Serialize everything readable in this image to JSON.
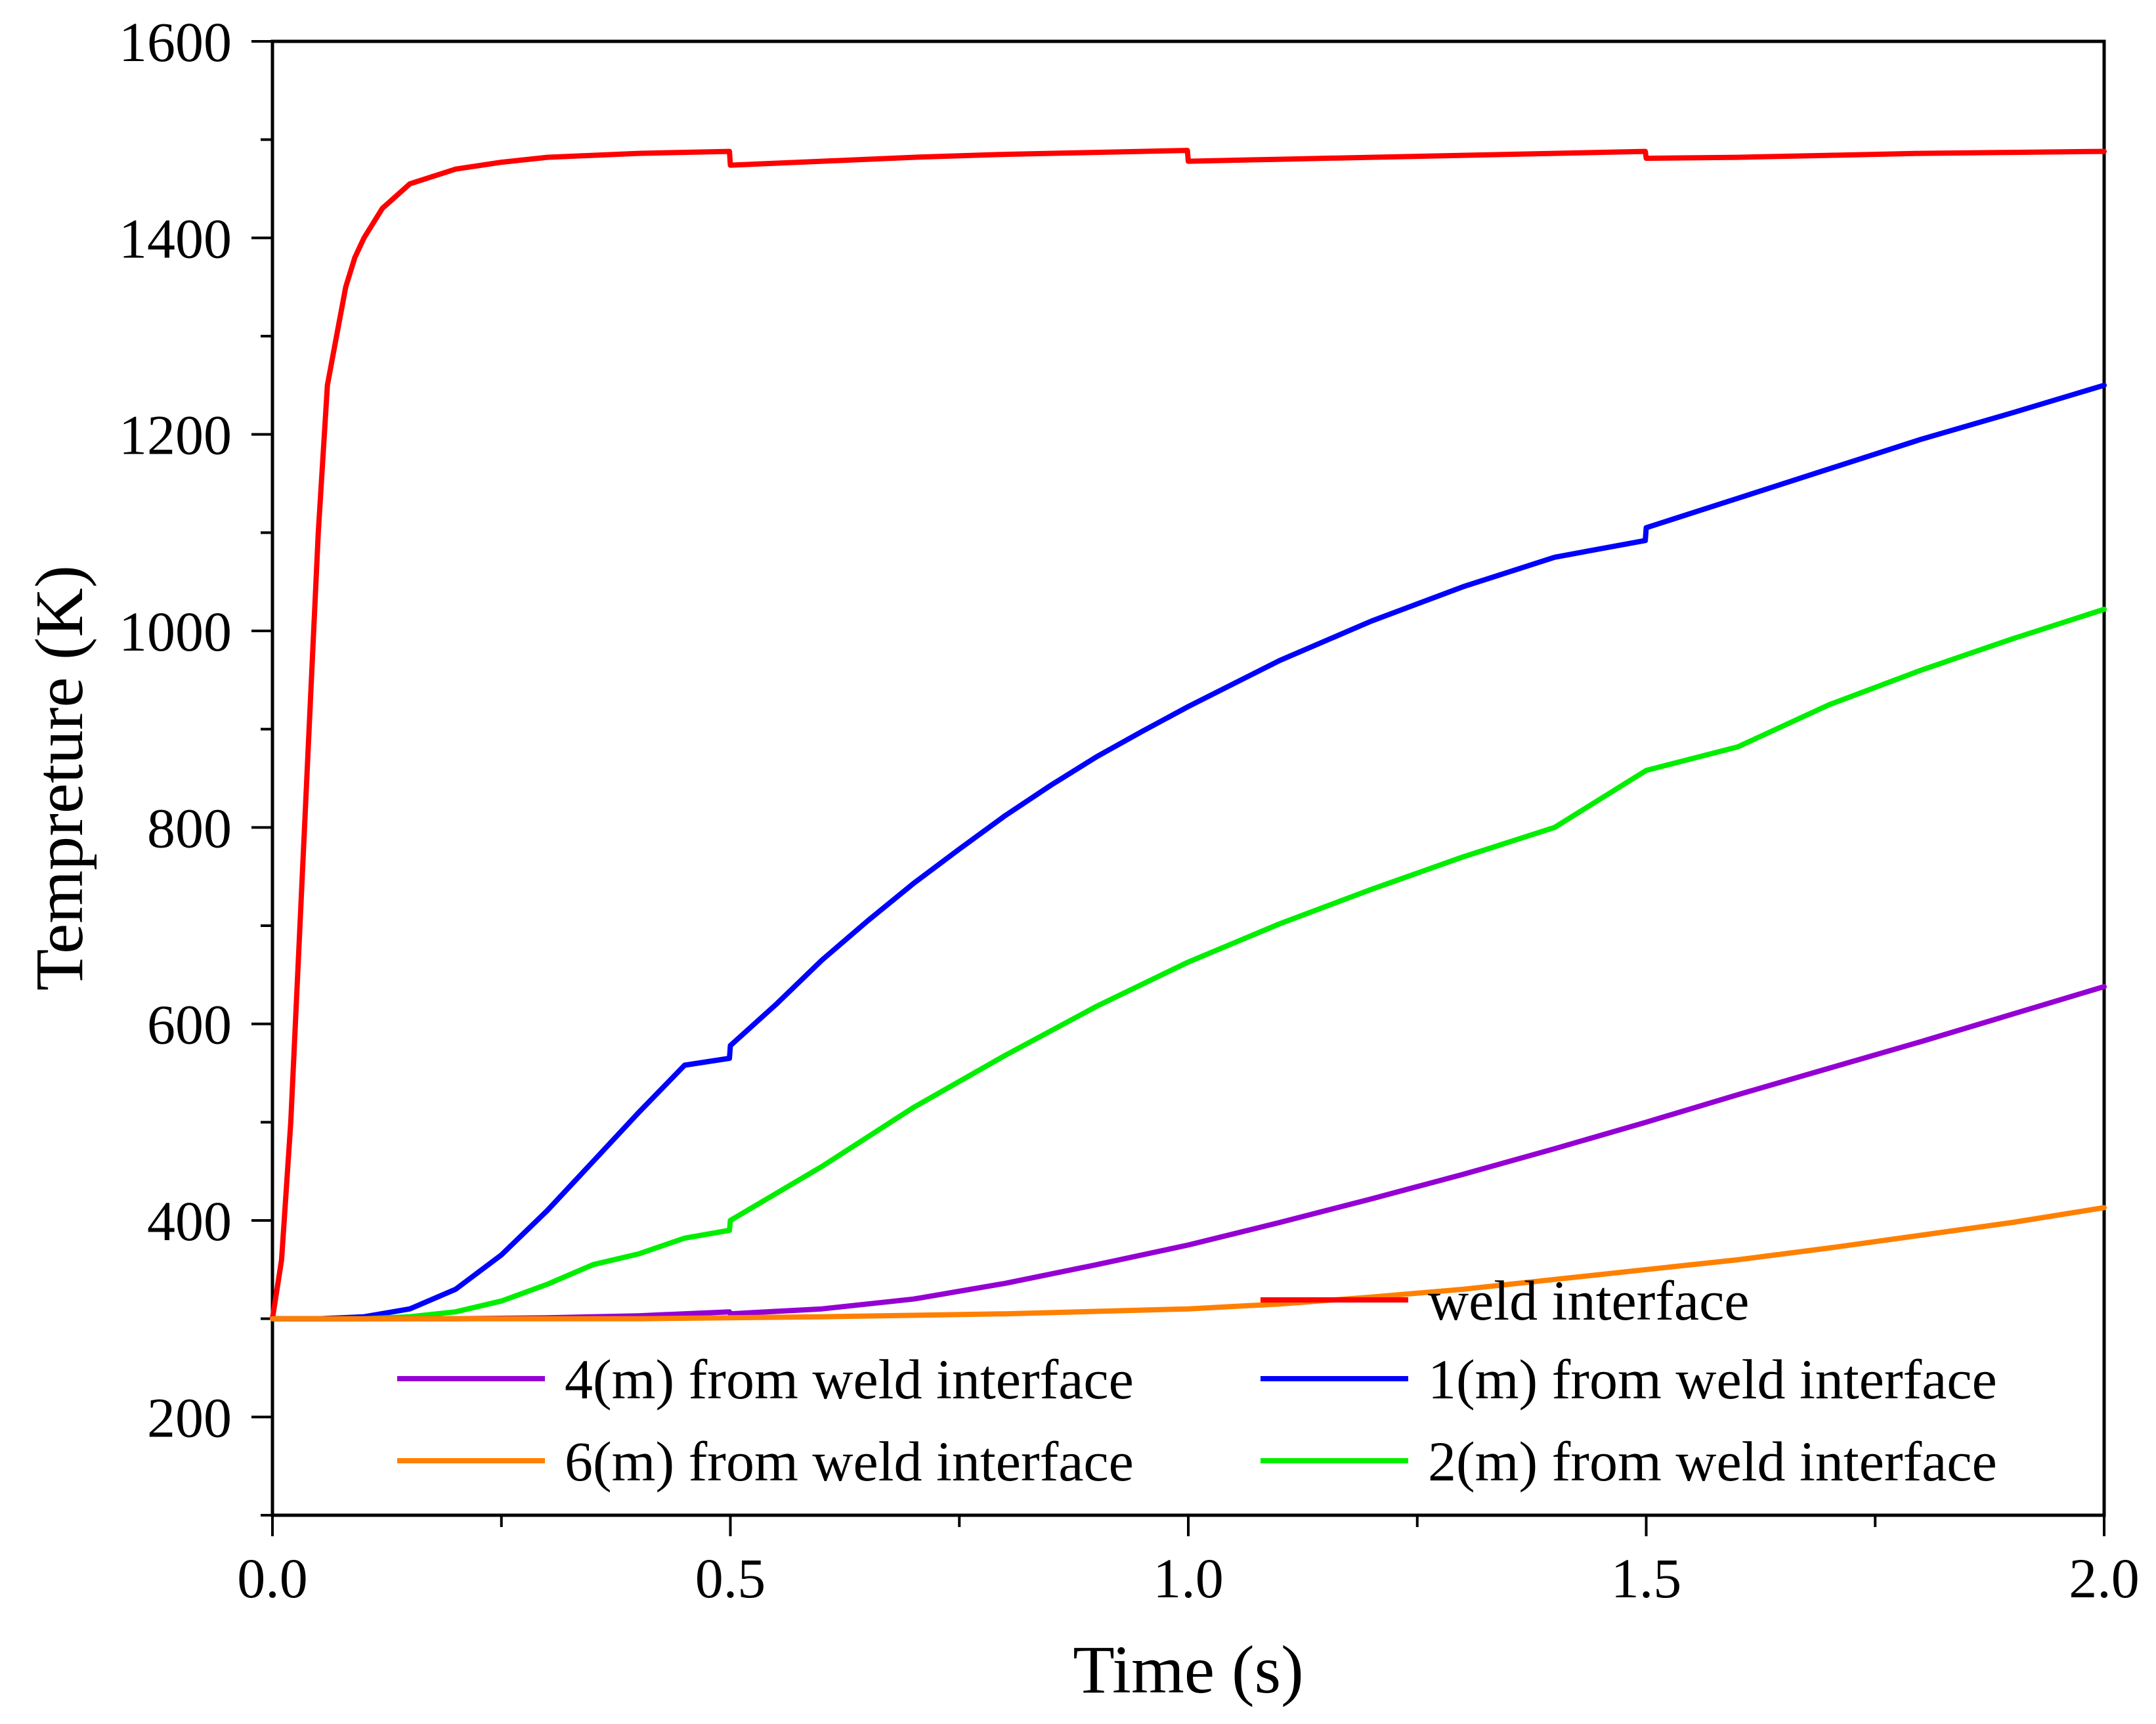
{
  "chart_data": {
    "type": "line",
    "title": "",
    "xlabel": "Time (s)",
    "ylabel": "Tempreture (K)",
    "xlim": [
      0,
      2.0
    ],
    "ylim": [
      100,
      1600
    ],
    "x_ticks": [
      0.0,
      0.5,
      1.0,
      1.5,
      2.0
    ],
    "x_tick_labels": [
      "0.0",
      "0.5",
      "1.0",
      "1.5",
      "2.0"
    ],
    "x_minor_ticks": [
      0.25,
      0.75,
      1.25,
      1.75
    ],
    "y_ticks": [
      200,
      400,
      600,
      800,
      1000,
      1200,
      1400,
      1600
    ],
    "y_tick_labels": [
      "200",
      "400",
      "600",
      "800",
      "1000",
      "1200",
      "1400",
      "1600"
    ],
    "y_minor_ticks": [
      100,
      300,
      500,
      700,
      900,
      1100,
      1300,
      1500
    ],
    "grid": false,
    "legend_position": "bottom-right",
    "series": [
      {
        "name": "weld interface",
        "color": "#ff0000",
        "points": [
          [
            0,
            300
          ],
          [
            0.01,
            360
          ],
          [
            0.02,
            500
          ],
          [
            0.03,
            700
          ],
          [
            0.04,
            900
          ],
          [
            0.05,
            1100
          ],
          [
            0.06,
            1250
          ],
          [
            0.07,
            1300
          ],
          [
            0.08,
            1350
          ],
          [
            0.09,
            1380
          ],
          [
            0.1,
            1400
          ],
          [
            0.12,
            1430
          ],
          [
            0.15,
            1455
          ],
          [
            0.2,
            1470
          ],
          [
            0.25,
            1477
          ],
          [
            0.3,
            1482
          ],
          [
            0.4,
            1486
          ],
          [
            0.499,
            1488
          ],
          [
            0.5,
            1474
          ],
          [
            0.6,
            1478
          ],
          [
            0.7,
            1482
          ],
          [
            0.8,
            1485
          ],
          [
            0.9,
            1487
          ],
          [
            0.999,
            1489
          ],
          [
            1.0,
            1478
          ],
          [
            1.1,
            1480
          ],
          [
            1.2,
            1482
          ],
          [
            1.3,
            1484
          ],
          [
            1.4,
            1486
          ],
          [
            1.499,
            1488
          ],
          [
            1.5,
            1481
          ],
          [
            1.6,
            1482
          ],
          [
            1.7,
            1484
          ],
          [
            1.8,
            1486
          ],
          [
            1.9,
            1487
          ],
          [
            2.0,
            1488
          ]
        ]
      },
      {
        "name": "1(m) from weld interface",
        "color": "#0000ff",
        "points": [
          [
            0,
            300
          ],
          [
            0.05,
            300
          ],
          [
            0.1,
            302
          ],
          [
            0.15,
            310
          ],
          [
            0.2,
            330
          ],
          [
            0.25,
            365
          ],
          [
            0.3,
            410
          ],
          [
            0.35,
            460
          ],
          [
            0.4,
            510
          ],
          [
            0.45,
            558
          ],
          [
            0.499,
            565
          ],
          [
            0.5,
            578
          ],
          [
            0.55,
            620
          ],
          [
            0.6,
            665
          ],
          [
            0.65,
            705
          ],
          [
            0.7,
            743
          ],
          [
            0.75,
            778
          ],
          [
            0.8,
            812
          ],
          [
            0.85,
            843
          ],
          [
            0.9,
            872
          ],
          [
            0.95,
            898
          ],
          [
            1.0,
            923
          ],
          [
            1.1,
            970
          ],
          [
            1.2,
            1010
          ],
          [
            1.3,
            1045
          ],
          [
            1.4,
            1075
          ],
          [
            1.499,
            1092
          ],
          [
            1.5,
            1105
          ],
          [
            1.6,
            1135
          ],
          [
            1.7,
            1165
          ],
          [
            1.8,
            1195
          ],
          [
            1.9,
            1222
          ],
          [
            2.0,
            1250
          ]
        ]
      },
      {
        "name": "2(m) from weld interface",
        "color": "#00ee00",
        "points": [
          [
            0,
            300
          ],
          [
            0.1,
            300
          ],
          [
            0.15,
            302
          ],
          [
            0.2,
            307
          ],
          [
            0.25,
            318
          ],
          [
            0.3,
            335
          ],
          [
            0.35,
            355
          ],
          [
            0.4,
            366
          ],
          [
            0.45,
            382
          ],
          [
            0.499,
            390
          ],
          [
            0.5,
            400
          ],
          [
            0.6,
            455
          ],
          [
            0.7,
            515
          ],
          [
            0.8,
            568
          ],
          [
            0.9,
            618
          ],
          [
            1.0,
            663
          ],
          [
            1.1,
            702
          ],
          [
            1.2,
            737
          ],
          [
            1.3,
            770
          ],
          [
            1.4,
            800
          ],
          [
            1.5,
            858
          ],
          [
            1.6,
            882
          ],
          [
            1.7,
            925
          ],
          [
            1.8,
            960
          ],
          [
            1.9,
            992
          ],
          [
            2.0,
            1022
          ]
        ]
      },
      {
        "name": "4(m) from weld interface",
        "color": "#9400d3",
        "points": [
          [
            0,
            300
          ],
          [
            0.2,
            300
          ],
          [
            0.3,
            301
          ],
          [
            0.4,
            303
          ],
          [
            0.499,
            307
          ],
          [
            0.5,
            305
          ],
          [
            0.6,
            310
          ],
          [
            0.7,
            320
          ],
          [
            0.8,
            336
          ],
          [
            0.9,
            355
          ],
          [
            1.0,
            375
          ],
          [
            1.1,
            398
          ],
          [
            1.2,
            422
          ],
          [
            1.3,
            447
          ],
          [
            1.4,
            473
          ],
          [
            1.5,
            500
          ],
          [
            1.6,
            528
          ],
          [
            1.7,
            555
          ],
          [
            1.8,
            582
          ],
          [
            1.9,
            610
          ],
          [
            2.0,
            638
          ]
        ]
      },
      {
        "name": "6(m) from weld interface",
        "color": "#ff8000",
        "points": [
          [
            0,
            300
          ],
          [
            0.4,
            300
          ],
          [
            0.6,
            302
          ],
          [
            0.8,
            305
          ],
          [
            1.0,
            310
          ],
          [
            1.1,
            315
          ],
          [
            1.2,
            322
          ],
          [
            1.3,
            330
          ],
          [
            1.4,
            340
          ],
          [
            1.5,
            350
          ],
          [
            1.6,
            360
          ],
          [
            1.7,
            372
          ],
          [
            1.8,
            385
          ],
          [
            1.9,
            398
          ],
          [
            2.0,
            413
          ]
        ]
      }
    ]
  }
}
